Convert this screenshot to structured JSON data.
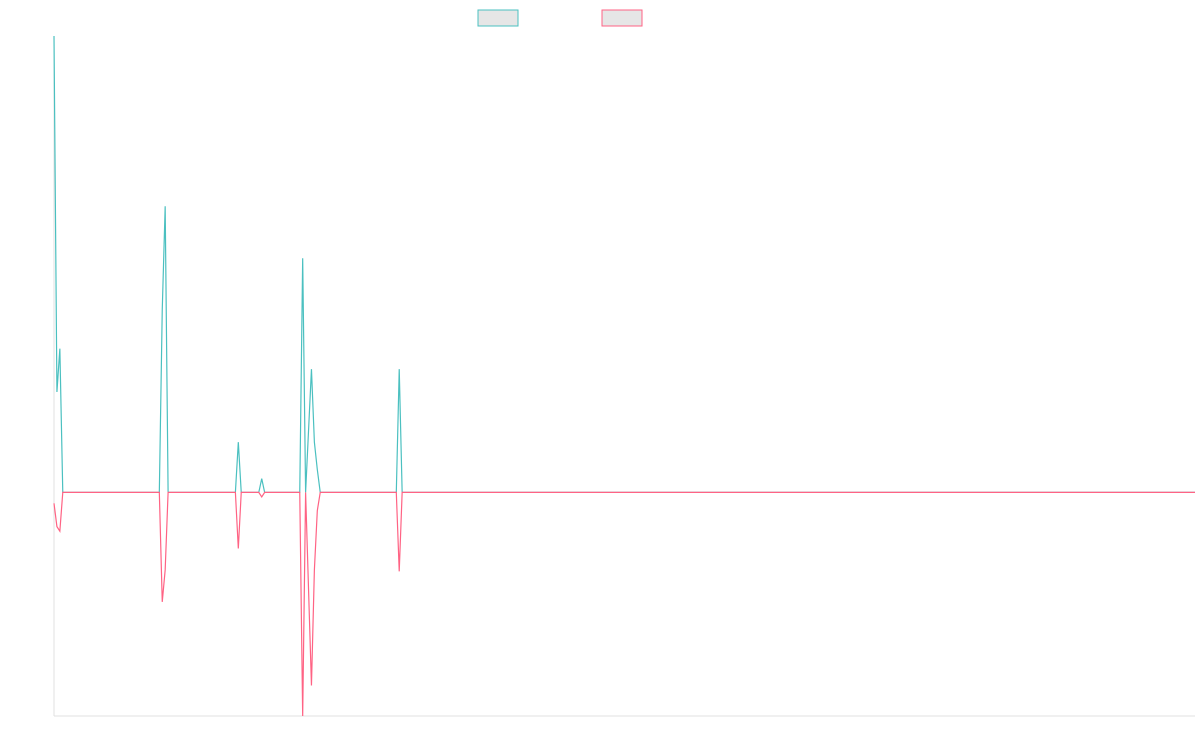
{
  "chart_data": {
    "type": "line",
    "x": [
      0,
      1,
      2,
      3,
      36,
      37,
      38,
      39,
      62,
      63,
      64,
      70,
      71,
      72,
      84,
      85,
      86,
      88,
      89,
      90,
      91,
      117,
      118,
      119,
      390
    ],
    "series": [
      {
        "color": "#4bc0c0",
        "values": [
          100,
          22,
          31.5,
          0,
          0,
          40,
          62.7,
          0,
          0,
          11,
          0,
          0,
          3,
          0,
          0,
          51.3,
          0,
          27,
          11,
          5,
          0,
          0,
          27,
          0,
          0
        ]
      },
      {
        "color": "#ff6384",
        "values": [
          -2.4,
          -7.5,
          -8.5,
          0,
          0,
          -24,
          -17,
          0,
          0,
          -12.3,
          0,
          0,
          -1,
          0,
          0,
          -49,
          0,
          -42.3,
          -17,
          -4,
          0,
          0,
          -17.3,
          0,
          0
        ]
      }
    ],
    "xlim": [
      0,
      390
    ],
    "ylim": [
      -49,
      100
    ],
    "grid": false,
    "legend": "top"
  }
}
